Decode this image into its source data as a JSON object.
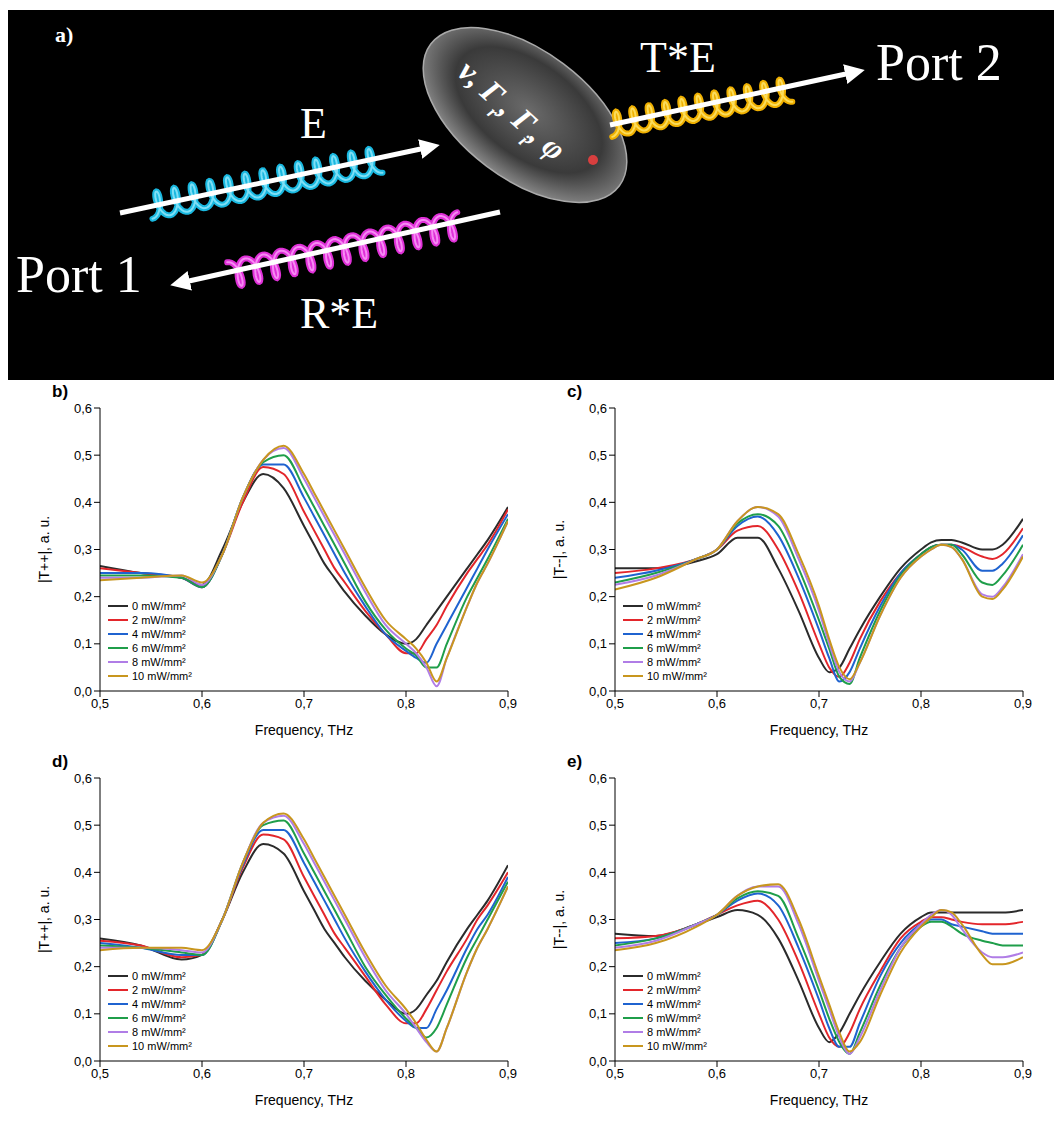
{
  "diagram": {
    "label": "a)",
    "port_in": "Port 1",
    "port_out": "Port 2",
    "incident": "E",
    "transmitted": "T*E",
    "reflected": "R*E",
    "parameters": [
      {
        "text": "ν, Γ"
      },
      {
        "sub": "r"
      },
      {
        "text": ", Γ"
      },
      {
        "sub": "i"
      },
      {
        "text": ", φ"
      }
    ]
  },
  "chart_data": [
    {
      "label": "b)",
      "type": "line",
      "xlabel": "Frequency, THz",
      "ylabel": "|T++|, a. u.",
      "xlim": [
        0.5,
        0.9
      ],
      "ylim": [
        0,
        0.6
      ],
      "xticks": [
        {
          "value": 0.5,
          "label": "0,5"
        },
        {
          "value": 0.6,
          "label": "0,6"
        },
        {
          "value": 0.7,
          "label": "0,7"
        },
        {
          "value": 0.8,
          "label": "0,8"
        },
        {
          "value": 0.9,
          "label": "0,9"
        }
      ],
      "yticks": [
        {
          "value": 0,
          "label": "0,0"
        },
        {
          "value": 0.1,
          "label": "0,1"
        },
        {
          "value": 0.2,
          "label": "0,2"
        },
        {
          "value": 0.3,
          "label": "0,3"
        },
        {
          "value": 0.4,
          "label": "0,4"
        },
        {
          "value": 0.5,
          "label": "0,5"
        },
        {
          "value": 0.6,
          "label": "0,6"
        }
      ],
      "grid": false,
      "legend": "lower left",
      "x": [
        0.5,
        0.54,
        0.58,
        0.6,
        0.62,
        0.64,
        0.66,
        0.68,
        0.7,
        0.71,
        0.72,
        0.73,
        0.74,
        0.76,
        0.78,
        0.8,
        0.81,
        0.82,
        0.83,
        0.84,
        0.86,
        0.87,
        0.88,
        0.9
      ],
      "series": [
        {
          "name": "0 mW/mm²",
          "color": "#2b2b2b",
          "values": [
            0.265,
            0.25,
            0.24,
            0.225,
            0.3,
            0.4,
            0.46,
            0.43,
            0.35,
            0.31,
            0.27,
            0.24,
            0.21,
            0.16,
            0.12,
            0.1,
            0.11,
            0.14,
            0.17,
            0.2,
            0.26,
            0.29,
            0.32,
            0.39
          ]
        },
        {
          "name": "2 mW/mm²",
          "color": "#e3262b",
          "values": [
            0.26,
            0.25,
            0.24,
            0.22,
            0.29,
            0.4,
            0.475,
            0.46,
            0.38,
            0.34,
            0.3,
            0.26,
            0.23,
            0.17,
            0.12,
            0.08,
            0.08,
            0.11,
            0.14,
            0.18,
            0.25,
            0.28,
            0.31,
            0.385
          ]
        },
        {
          "name": "4 mW/mm²",
          "color": "#1f63d0",
          "values": [
            0.25,
            0.25,
            0.24,
            0.22,
            0.29,
            0.41,
            0.48,
            0.48,
            0.41,
            0.37,
            0.33,
            0.29,
            0.25,
            0.18,
            0.12,
            0.085,
            0.07,
            0.06,
            0.1,
            0.14,
            0.22,
            0.26,
            0.3,
            0.375
          ]
        },
        {
          "name": "6 mW/mm²",
          "color": "#1f9e4a",
          "values": [
            0.245,
            0.245,
            0.24,
            0.22,
            0.29,
            0.41,
            0.485,
            0.5,
            0.43,
            0.39,
            0.35,
            0.31,
            0.27,
            0.19,
            0.13,
            0.09,
            0.075,
            0.05,
            0.05,
            0.1,
            0.2,
            0.24,
            0.28,
            0.365
          ]
        },
        {
          "name": "8 mW/mm²",
          "color": "#b07de6",
          "values": [
            0.24,
            0.24,
            0.245,
            0.225,
            0.29,
            0.41,
            0.49,
            0.515,
            0.45,
            0.41,
            0.37,
            0.33,
            0.29,
            0.21,
            0.14,
            0.1,
            0.08,
            0.05,
            0.01,
            0.07,
            0.18,
            0.23,
            0.27,
            0.36
          ]
        },
        {
          "name": "10 mW/mm²",
          "color": "#c8961e",
          "values": [
            0.235,
            0.24,
            0.245,
            0.23,
            0.29,
            0.41,
            0.49,
            0.52,
            0.46,
            0.42,
            0.38,
            0.34,
            0.3,
            0.22,
            0.15,
            0.11,
            0.09,
            0.06,
            0.02,
            0.07,
            0.18,
            0.23,
            0.27,
            0.36
          ]
        }
      ]
    },
    {
      "label": "c)",
      "type": "line",
      "xlabel": "Frequency, THz",
      "ylabel": "|T--|, a. u.",
      "xlim": [
        0.5,
        0.9
      ],
      "ylim": [
        0,
        0.6
      ],
      "xticks": [
        {
          "value": 0.5,
          "label": "0,5"
        },
        {
          "value": 0.6,
          "label": "0,6"
        },
        {
          "value": 0.7,
          "label": "0,7"
        },
        {
          "value": 0.8,
          "label": "0,8"
        },
        {
          "value": 0.9,
          "label": "0,9"
        }
      ],
      "yticks": [
        {
          "value": 0,
          "label": "0,0"
        },
        {
          "value": 0.1,
          "label": "0,1"
        },
        {
          "value": 0.2,
          "label": "0,2"
        },
        {
          "value": 0.3,
          "label": "0,3"
        },
        {
          "value": 0.4,
          "label": "0,4"
        },
        {
          "value": 0.5,
          "label": "0,5"
        },
        {
          "value": 0.6,
          "label": "0,6"
        }
      ],
      "grid": false,
      "legend": "lower left",
      "x": [
        0.5,
        0.54,
        0.58,
        0.6,
        0.62,
        0.64,
        0.66,
        0.68,
        0.7,
        0.71,
        0.72,
        0.73,
        0.74,
        0.76,
        0.78,
        0.8,
        0.81,
        0.82,
        0.83,
        0.84,
        0.86,
        0.87,
        0.88,
        0.9
      ],
      "series": [
        {
          "name": "0 mW/mm²",
          "color": "#2b2b2b",
          "values": [
            0.26,
            0.26,
            0.275,
            0.29,
            0.325,
            0.325,
            0.26,
            0.17,
            0.07,
            0.04,
            0.05,
            0.09,
            0.13,
            0.2,
            0.26,
            0.3,
            0.315,
            0.32,
            0.32,
            0.315,
            0.3,
            0.3,
            0.31,
            0.365
          ]
        },
        {
          "name": "2 mW/mm²",
          "color": "#e3262b",
          "values": [
            0.25,
            0.26,
            0.28,
            0.3,
            0.34,
            0.35,
            0.3,
            0.21,
            0.1,
            0.05,
            0.03,
            0.06,
            0.11,
            0.19,
            0.25,
            0.29,
            0.305,
            0.31,
            0.31,
            0.305,
            0.285,
            0.28,
            0.29,
            0.345
          ]
        },
        {
          "name": "4 mW/mm²",
          "color": "#1f63d0",
          "values": [
            0.24,
            0.255,
            0.28,
            0.3,
            0.35,
            0.37,
            0.33,
            0.24,
            0.13,
            0.07,
            0.02,
            0.04,
            0.09,
            0.18,
            0.25,
            0.29,
            0.305,
            0.31,
            0.31,
            0.3,
            0.255,
            0.255,
            0.27,
            0.33
          ]
        },
        {
          "name": "6 mW/mm²",
          "color": "#1f9e4a",
          "values": [
            0.23,
            0.25,
            0.28,
            0.3,
            0.355,
            0.375,
            0.35,
            0.26,
            0.15,
            0.09,
            0.03,
            0.015,
            0.07,
            0.17,
            0.245,
            0.29,
            0.305,
            0.31,
            0.31,
            0.29,
            0.23,
            0.225,
            0.245,
            0.31
          ]
        },
        {
          "name": "8 mW/mm²",
          "color": "#b07de6",
          "values": [
            0.225,
            0.245,
            0.28,
            0.3,
            0.36,
            0.39,
            0.37,
            0.28,
            0.17,
            0.1,
            0.04,
            0.02,
            0.06,
            0.16,
            0.24,
            0.285,
            0.3,
            0.31,
            0.305,
            0.28,
            0.205,
            0.2,
            0.22,
            0.29
          ]
        },
        {
          "name": "10 mW/mm²",
          "color": "#c8961e",
          "values": [
            0.215,
            0.24,
            0.28,
            0.3,
            0.36,
            0.39,
            0.375,
            0.29,
            0.18,
            0.11,
            0.05,
            0.025,
            0.06,
            0.16,
            0.24,
            0.285,
            0.3,
            0.31,
            0.305,
            0.28,
            0.2,
            0.195,
            0.215,
            0.285
          ]
        }
      ]
    },
    {
      "label": "d)",
      "type": "line",
      "xlabel": "Frequency, THz",
      "ylabel": "|T++|, a. u.",
      "xlim": [
        0.5,
        0.9
      ],
      "ylim": [
        0,
        0.6
      ],
      "xticks": [
        {
          "value": 0.5,
          "label": "0,5"
        },
        {
          "value": 0.6,
          "label": "0,6"
        },
        {
          "value": 0.7,
          "label": "0,7"
        },
        {
          "value": 0.8,
          "label": "0,8"
        },
        {
          "value": 0.9,
          "label": "0,9"
        }
      ],
      "yticks": [
        {
          "value": 0,
          "label": "0,0"
        },
        {
          "value": 0.1,
          "label": "0,1"
        },
        {
          "value": 0.2,
          "label": "0,2"
        },
        {
          "value": 0.3,
          "label": "0,3"
        },
        {
          "value": 0.4,
          "label": "0,4"
        },
        {
          "value": 0.5,
          "label": "0,5"
        },
        {
          "value": 0.6,
          "label": "0,6"
        }
      ],
      "grid": false,
      "legend": "lower left",
      "x": [
        0.5,
        0.54,
        0.58,
        0.6,
        0.62,
        0.64,
        0.66,
        0.68,
        0.7,
        0.71,
        0.72,
        0.73,
        0.74,
        0.76,
        0.78,
        0.8,
        0.81,
        0.82,
        0.83,
        0.84,
        0.86,
        0.87,
        0.88,
        0.9
      ],
      "series": [
        {
          "name": "0 mW/mm²",
          "color": "#2b2b2b",
          "values": [
            0.26,
            0.245,
            0.215,
            0.225,
            0.3,
            0.4,
            0.46,
            0.44,
            0.36,
            0.32,
            0.28,
            0.25,
            0.22,
            0.17,
            0.13,
            0.1,
            0.11,
            0.14,
            0.17,
            0.21,
            0.28,
            0.31,
            0.34,
            0.415
          ]
        },
        {
          "name": "2 mW/mm²",
          "color": "#e3262b",
          "values": [
            0.255,
            0.245,
            0.22,
            0.225,
            0.3,
            0.41,
            0.48,
            0.47,
            0.39,
            0.35,
            0.31,
            0.27,
            0.24,
            0.18,
            0.12,
            0.08,
            0.08,
            0.11,
            0.15,
            0.19,
            0.26,
            0.3,
            0.33,
            0.4
          ]
        },
        {
          "name": "4 mW/mm²",
          "color": "#1f63d0",
          "values": [
            0.25,
            0.24,
            0.225,
            0.225,
            0.3,
            0.415,
            0.49,
            0.49,
            0.42,
            0.38,
            0.34,
            0.3,
            0.26,
            0.19,
            0.13,
            0.085,
            0.07,
            0.07,
            0.11,
            0.15,
            0.24,
            0.28,
            0.31,
            0.39
          ]
        },
        {
          "name": "6 mW/mm²",
          "color": "#1f9e4a",
          "values": [
            0.245,
            0.24,
            0.23,
            0.225,
            0.3,
            0.42,
            0.5,
            0.51,
            0.44,
            0.4,
            0.36,
            0.32,
            0.28,
            0.2,
            0.14,
            0.09,
            0.07,
            0.05,
            0.07,
            0.12,
            0.22,
            0.26,
            0.3,
            0.38
          ]
        },
        {
          "name": "8 mW/mm²",
          "color": "#b07de6",
          "values": [
            0.24,
            0.24,
            0.235,
            0.23,
            0.3,
            0.42,
            0.505,
            0.52,
            0.46,
            0.42,
            0.38,
            0.34,
            0.3,
            0.22,
            0.15,
            0.1,
            0.07,
            0.04,
            0.02,
            0.07,
            0.19,
            0.24,
            0.28,
            0.37
          ]
        },
        {
          "name": "10 mW/mm²",
          "color": "#c8961e",
          "values": [
            0.235,
            0.24,
            0.24,
            0.235,
            0.3,
            0.42,
            0.505,
            0.525,
            0.47,
            0.43,
            0.39,
            0.35,
            0.31,
            0.23,
            0.16,
            0.11,
            0.08,
            0.045,
            0.02,
            0.07,
            0.19,
            0.24,
            0.28,
            0.37
          ]
        }
      ]
    },
    {
      "label": "e)",
      "type": "line",
      "xlabel": "Frequency, THz",
      "ylabel": "|T--|, a. u.",
      "xlim": [
        0.5,
        0.9
      ],
      "ylim": [
        0,
        0.6
      ],
      "xticks": [
        {
          "value": 0.5,
          "label": "0,5"
        },
        {
          "value": 0.6,
          "label": "0,6"
        },
        {
          "value": 0.7,
          "label": "0,7"
        },
        {
          "value": 0.8,
          "label": "0,8"
        },
        {
          "value": 0.9,
          "label": "0,9"
        }
      ],
      "yticks": [
        {
          "value": 0,
          "label": "0,0"
        },
        {
          "value": 0.1,
          "label": "0,1"
        },
        {
          "value": 0.2,
          "label": "0,2"
        },
        {
          "value": 0.3,
          "label": "0,3"
        },
        {
          "value": 0.4,
          "label": "0,4"
        },
        {
          "value": 0.5,
          "label": "0,5"
        },
        {
          "value": 0.6,
          "label": "0,6"
        }
      ],
      "grid": false,
      "legend": "lower left",
      "x": [
        0.5,
        0.54,
        0.58,
        0.6,
        0.62,
        0.64,
        0.66,
        0.68,
        0.7,
        0.71,
        0.72,
        0.73,
        0.74,
        0.76,
        0.78,
        0.8,
        0.81,
        0.82,
        0.83,
        0.84,
        0.86,
        0.87,
        0.88,
        0.9
      ],
      "series": [
        {
          "name": "0 mW/mm²",
          "color": "#2b2b2b",
          "values": [
            0.27,
            0.265,
            0.29,
            0.305,
            0.32,
            0.31,
            0.26,
            0.17,
            0.07,
            0.04,
            0.06,
            0.1,
            0.14,
            0.21,
            0.27,
            0.305,
            0.315,
            0.315,
            0.315,
            0.315,
            0.315,
            0.315,
            0.315,
            0.32
          ]
        },
        {
          "name": "2 mW/mm²",
          "color": "#e3262b",
          "values": [
            0.26,
            0.265,
            0.29,
            0.31,
            0.33,
            0.34,
            0.3,
            0.21,
            0.1,
            0.05,
            0.03,
            0.06,
            0.11,
            0.19,
            0.26,
            0.295,
            0.305,
            0.305,
            0.3,
            0.295,
            0.29,
            0.29,
            0.29,
            0.295
          ]
        },
        {
          "name": "4 mW/mm²",
          "color": "#1f63d0",
          "values": [
            0.25,
            0.26,
            0.29,
            0.31,
            0.34,
            0.355,
            0.33,
            0.24,
            0.13,
            0.07,
            0.03,
            0.03,
            0.08,
            0.18,
            0.25,
            0.29,
            0.3,
            0.3,
            0.29,
            0.285,
            0.275,
            0.27,
            0.27,
            0.27
          ]
        },
        {
          "name": "6 mW/mm²",
          "color": "#1f9e4a",
          "values": [
            0.245,
            0.26,
            0.29,
            0.31,
            0.345,
            0.36,
            0.35,
            0.26,
            0.15,
            0.09,
            0.04,
            0.015,
            0.06,
            0.16,
            0.24,
            0.285,
            0.295,
            0.295,
            0.285,
            0.27,
            0.255,
            0.25,
            0.245,
            0.245
          ]
        },
        {
          "name": "8 mW/mm²",
          "color": "#b07de6",
          "values": [
            0.24,
            0.255,
            0.29,
            0.31,
            0.35,
            0.37,
            0.37,
            0.29,
            0.17,
            0.11,
            0.05,
            0.015,
            0.05,
            0.15,
            0.24,
            0.29,
            0.31,
            0.32,
            0.31,
            0.28,
            0.23,
            0.22,
            0.22,
            0.23
          ]
        },
        {
          "name": "10 mW/mm²",
          "color": "#c8961e",
          "values": [
            0.235,
            0.25,
            0.285,
            0.31,
            0.35,
            0.37,
            0.375,
            0.3,
            0.18,
            0.12,
            0.06,
            0.02,
            0.04,
            0.14,
            0.23,
            0.285,
            0.305,
            0.32,
            0.315,
            0.29,
            0.225,
            0.205,
            0.205,
            0.22
          ]
        }
      ]
    }
  ]
}
